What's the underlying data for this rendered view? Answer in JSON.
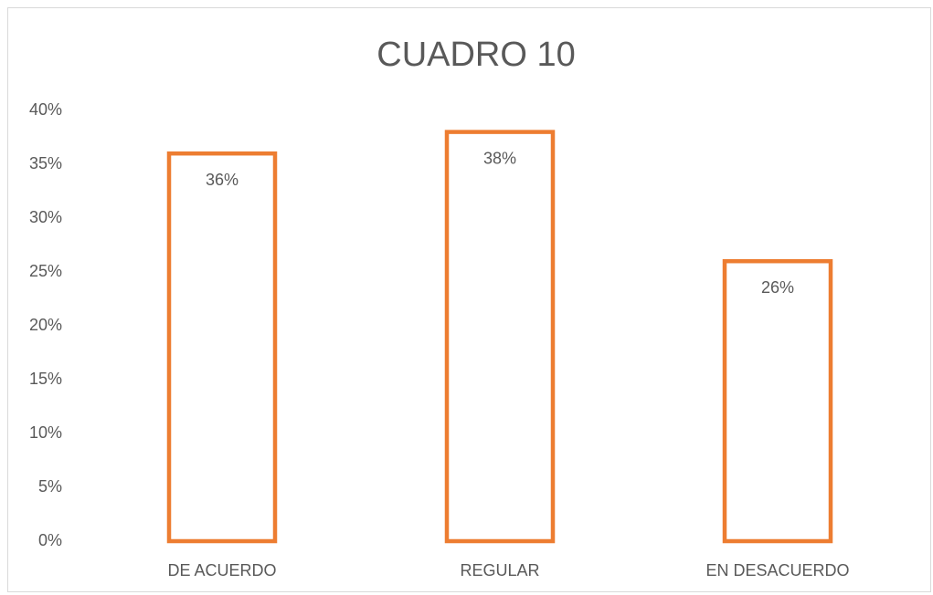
{
  "chart_data": {
    "type": "bar",
    "title": "CUADRO 10",
    "categories": [
      "DE ACUERDO",
      "REGULAR",
      "EN DESACUERDO"
    ],
    "values": [
      36,
      38,
      26
    ],
    "value_labels": [
      "36%",
      "38%",
      "26%"
    ],
    "color": "#ed7d31",
    "ylim": [
      0,
      40
    ],
    "yticks": [
      {
        "value": 0,
        "label": "0%"
      },
      {
        "value": 5,
        "label": "5%"
      },
      {
        "value": 10,
        "label": "10%"
      },
      {
        "value": 15,
        "label": "15%"
      },
      {
        "value": 20,
        "label": "20%"
      },
      {
        "value": 25,
        "label": "25%"
      },
      {
        "value": 30,
        "label": "30%"
      },
      {
        "value": 35,
        "label": "35%"
      },
      {
        "value": 40,
        "label": "40%"
      }
    ],
    "grid": false
  }
}
